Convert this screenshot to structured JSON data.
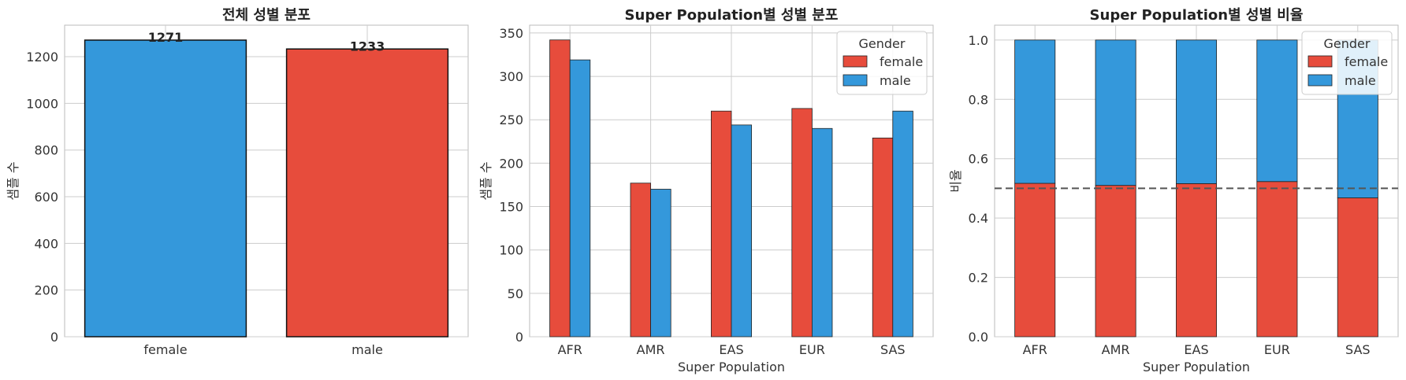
{
  "colors": {
    "female": "#e74c3c",
    "male": "#3498db",
    "grid": "#cccccc",
    "frame": "#bbbbbb",
    "reference_line": "#555555"
  },
  "chart_data": [
    {
      "type": "bar",
      "title": "전체 성별 분포",
      "xlabel": "",
      "ylabel": "샘플 수",
      "categories": [
        "female",
        "male"
      ],
      "values": [
        1271,
        1233
      ],
      "data_labels": [
        "1271",
        "1233"
      ],
      "bar_colors": [
        "#3498db",
        "#e74c3c"
      ],
      "ylim": [
        0,
        1335
      ],
      "yticks": [
        0,
        200,
        400,
        600,
        800,
        1000,
        1200
      ],
      "grid": true
    },
    {
      "type": "bar",
      "title": "Super Population별 성별 분포",
      "xlabel": "Super Population",
      "ylabel": "샘플 수",
      "categories": [
        "AFR",
        "AMR",
        "EAS",
        "EUR",
        "SAS"
      ],
      "series": [
        {
          "name": "female",
          "values": [
            342,
            177,
            260,
            263,
            229
          ]
        },
        {
          "name": "male",
          "values": [
            319,
            170,
            244,
            240,
            260
          ]
        }
      ],
      "legend_title": "Gender",
      "legend_position": "top-right",
      "ylim": [
        0,
        359
      ],
      "yticks": [
        0,
        50,
        100,
        150,
        200,
        250,
        300,
        350
      ],
      "grid": true
    },
    {
      "type": "bar",
      "stacked": true,
      "title": "Super Population별 성별 비율",
      "xlabel": "Super Population",
      "ylabel": "비율",
      "categories": [
        "AFR",
        "AMR",
        "EAS",
        "EUR",
        "SAS"
      ],
      "series": [
        {
          "name": "female",
          "values": [
            0.517,
            0.51,
            0.516,
            0.523,
            0.468
          ]
        },
        {
          "name": "male",
          "values": [
            0.483,
            0.49,
            0.484,
            0.477,
            0.532
          ]
        }
      ],
      "reference_line": 0.5,
      "legend_title": "Gender",
      "legend_position": "top-right",
      "ylim": [
        0,
        1.05
      ],
      "yticks": [
        "0.0",
        "0.2",
        "0.4",
        "0.6",
        "0.8",
        "1.0"
      ],
      "grid": true
    }
  ]
}
